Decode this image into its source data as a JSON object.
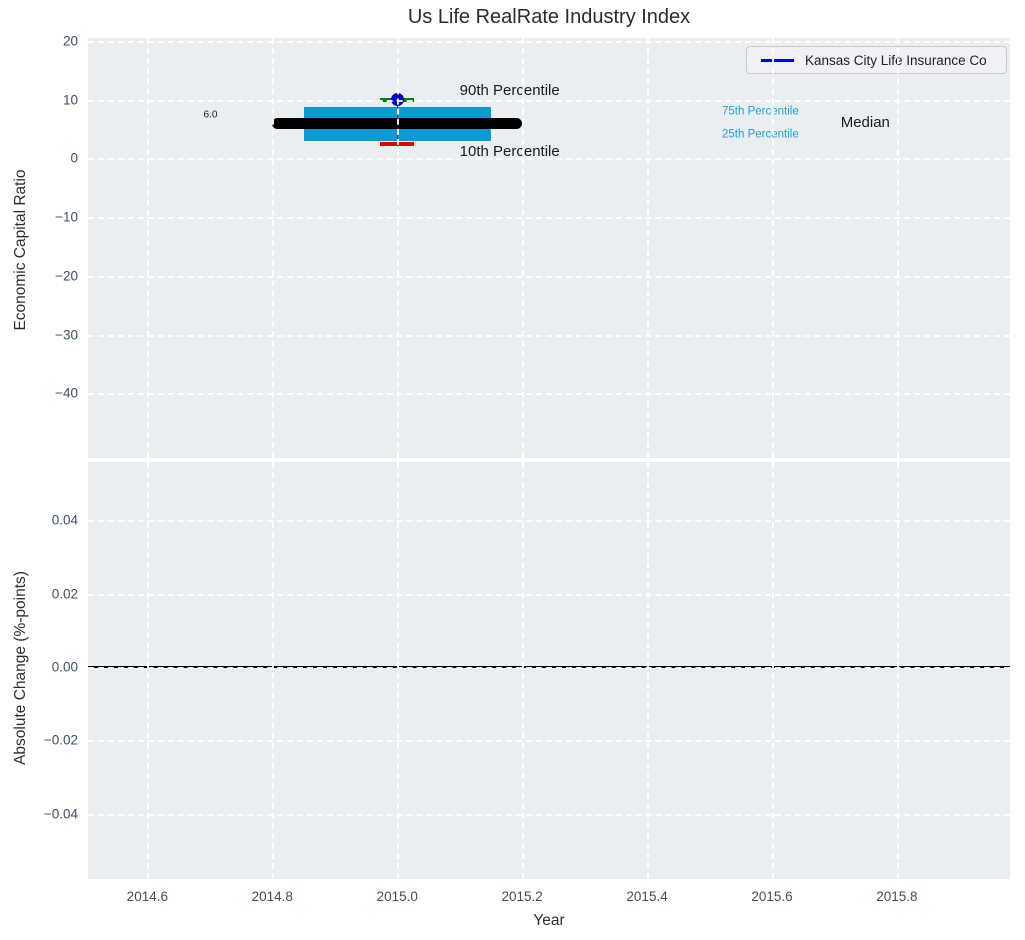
{
  "title": "Us Life RealRate Industry Index",
  "legend": {
    "label": "Kansas City Life Insurance Co"
  },
  "colors": {
    "plot_bg": "#e9eef0",
    "grid": "#ffffff",
    "box_fill": "#0b9bd1",
    "median_line": "#000000",
    "p90_cap": "#008000",
    "p10_cap": "#e60000",
    "company_marker": "#0000dd",
    "company_marker_edge": "#000090",
    "legend_line": "#0000ee",
    "annotation_blue": "#22a0d4",
    "tick_label": "#3d4e63",
    "zero_line": "#000000"
  },
  "chart_data": [
    {
      "type": "box",
      "title": "Us Life RealRate Industry Index",
      "xlabel": "Year",
      "ylabel": "Economic Capital Ratio",
      "xlim": [
        2014.505,
        2015.981
      ],
      "ylim": [
        -51,
        20.5
      ],
      "grid": true,
      "xticks": [
        2014.6,
        2014.8,
        2015.0,
        2015.2,
        2015.4,
        2015.6,
        2015.8
      ],
      "xtick_labels": [
        "2014.6",
        "2014.8",
        "2015.0",
        "2015.2",
        "2015.4",
        "2015.6",
        "2015.8"
      ],
      "yticks": [
        20,
        10,
        0,
        -10,
        -20,
        -30,
        -40
      ],
      "ytick_labels": [
        "20",
        "10",
        "0",
        "−10",
        "−20",
        "−30",
        "−40"
      ],
      "legend": {
        "label": "Kansas City Life Insurance Co",
        "position": "upper right"
      },
      "box": {
        "x": 2015.0,
        "p90": 10.0,
        "p75": 8.8,
        "median": 6.0,
        "p25": 2.9,
        "p10": 2.4,
        "box_x_range": [
          2014.85,
          2015.15
        ],
        "median_x_range": [
          2014.8,
          2015.2
        ],
        "company_value": 10.0,
        "median_value_label": "6.0"
      },
      "annotations": {
        "p90_label": {
          "text": "90th Percentile",
          "x": 2015.1,
          "y": 11.5
        },
        "p10_label": {
          "text": "10th Percentile",
          "x": 2015.1,
          "y": 1.1
        },
        "p75_label": {
          "text": "75th Percentile",
          "x": 2015.52,
          "y": 7.9
        },
        "p25_label": {
          "text": "25th Percentile",
          "x": 2015.52,
          "y": 4.0
        },
        "median_label": {
          "text": "Median",
          "x": 2015.71,
          "y": 6.0
        },
        "value_label": {
          "text": "6.0",
          "x": 2014.69,
          "y": 7.4
        }
      }
    },
    {
      "type": "line",
      "xlabel": "Year",
      "ylabel": "Absolute Change (%-points)",
      "xlim": [
        2014.505,
        2015.981
      ],
      "ylim": [
        -0.0577,
        0.0558
      ],
      "grid": true,
      "yticks": [
        0.04,
        0.02,
        0.0,
        -0.02,
        -0.04
      ],
      "ytick_labels": [
        "0.04",
        "0.02",
        "0.00",
        "−0.02",
        "−0.04"
      ],
      "zero_line": 0.0,
      "series": []
    }
  ]
}
